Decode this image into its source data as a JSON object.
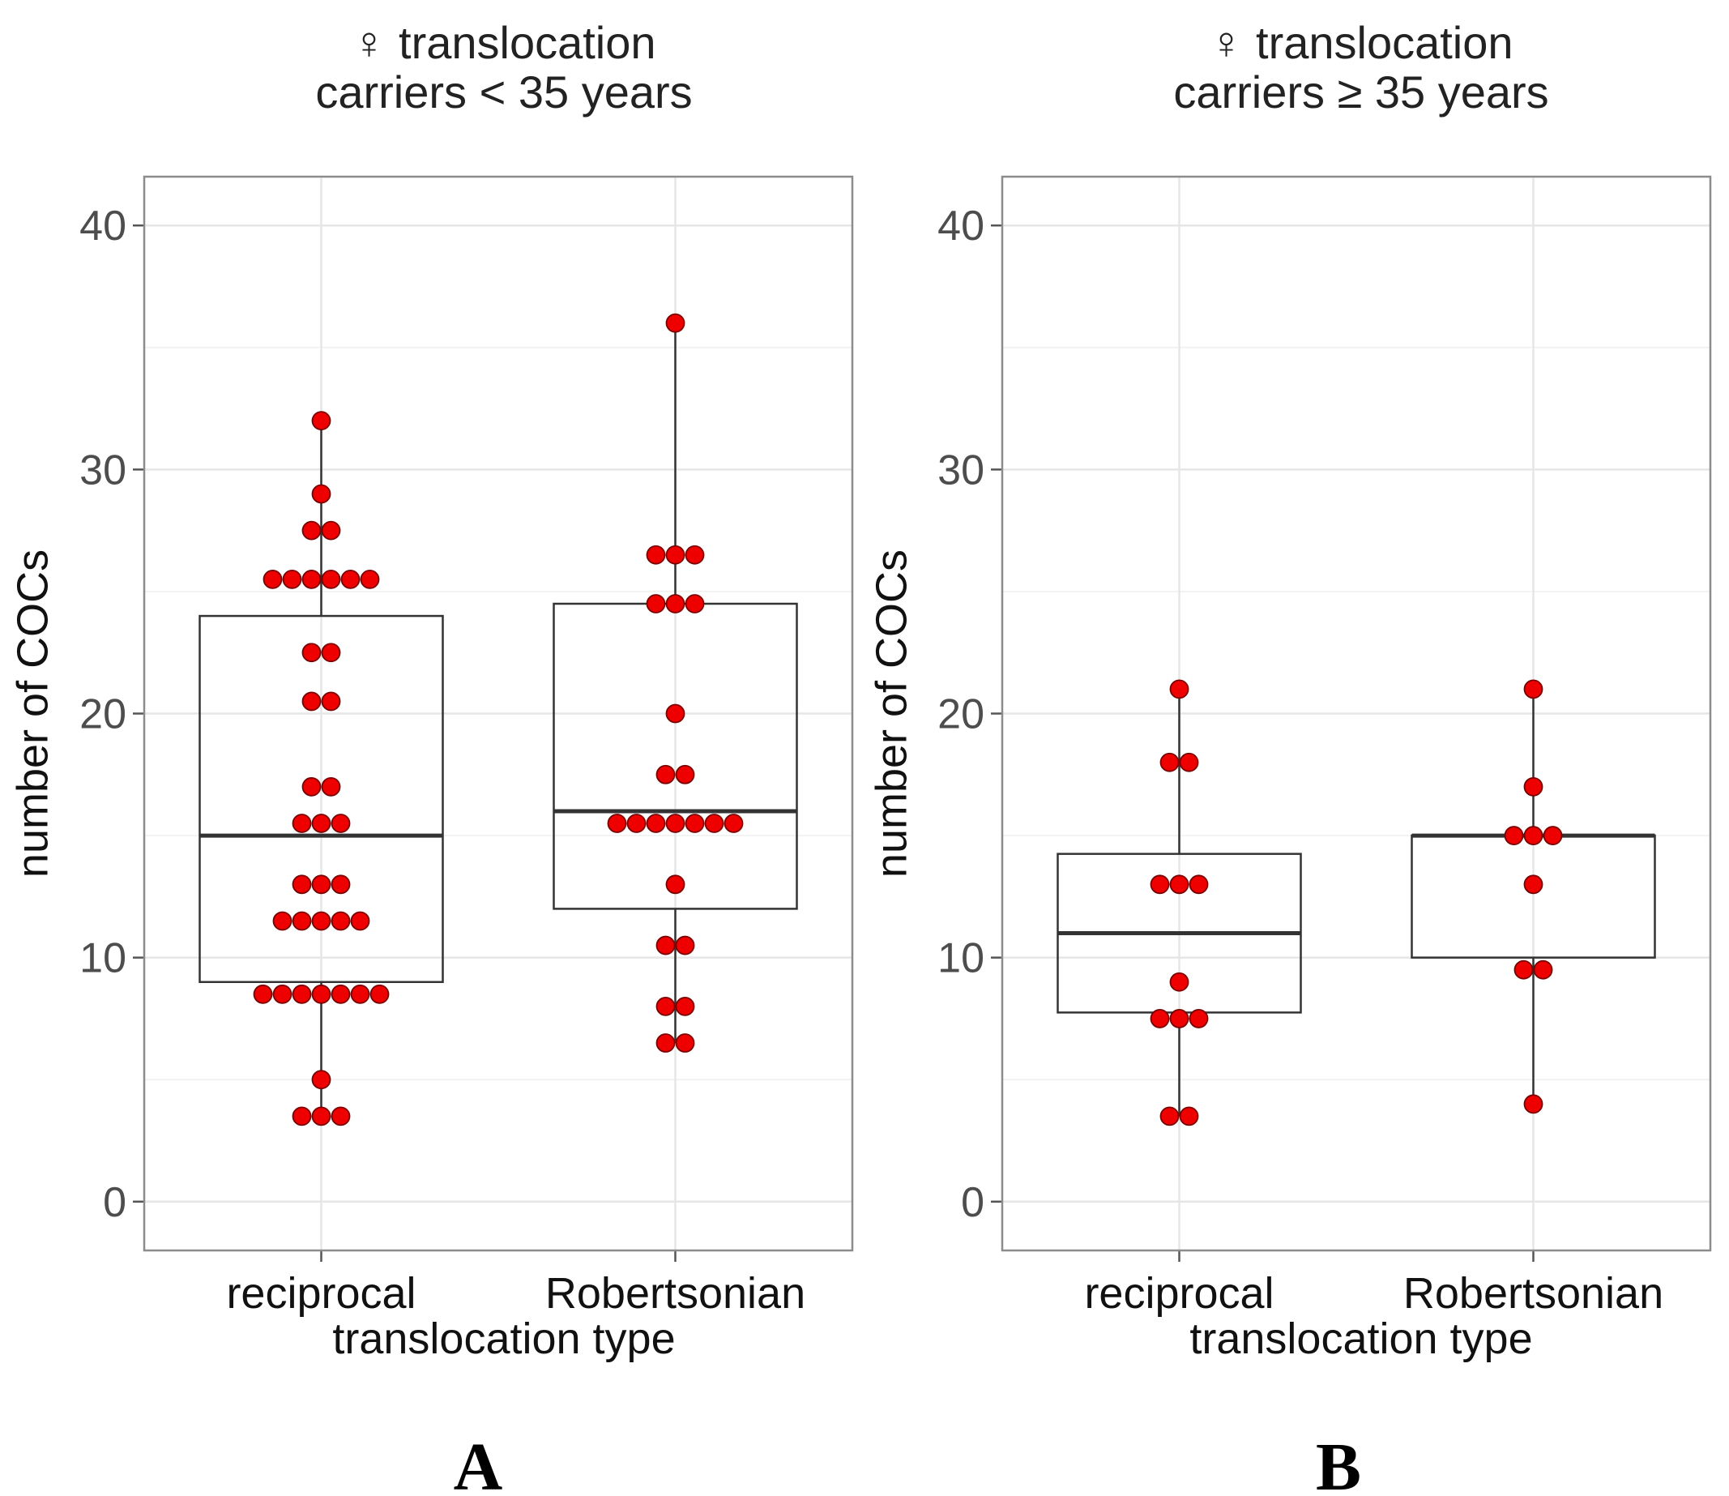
{
  "figure": {
    "panel_labels": [
      "A",
      "B"
    ],
    "colors": {
      "point_fill": "#ee0000",
      "point_stroke": "#7a0000",
      "box_stroke": "#333333",
      "grid_major": "#e6e6e6",
      "grid_minor": "#f2f2f2",
      "panel_border": "#8c8c8c"
    }
  },
  "chart_data": [
    {
      "type": "boxplot",
      "panel": "A",
      "title": [
        "♀ translocation",
        "carriers < 35 years"
      ],
      "xlabel": "translocation type",
      "ylabel": "number of COCs",
      "ylim": [
        -2,
        42
      ],
      "yticks": [
        0,
        10,
        20,
        30,
        40
      ],
      "ytick_labels": [
        "0",
        "10",
        "20",
        "30",
        "40"
      ],
      "categories": [
        "reciprocal",
        "Robertsonian"
      ],
      "boxes": [
        {
          "min": 3.5,
          "q1": 9,
          "median": 15,
          "q3": 24,
          "max": 32
        },
        {
          "min": 6.5,
          "q1": 12,
          "median": 16,
          "q3": 24.5,
          "max": 36
        }
      ],
      "points": [
        [
          32,
          29,
          27.5,
          27.5,
          25.5,
          25.5,
          25.5,
          25.5,
          25.5,
          25.5,
          22.5,
          22.5,
          20.5,
          20.5,
          17,
          17,
          15.5,
          15.5,
          15.5,
          13,
          13,
          13,
          11.5,
          11.5,
          11.5,
          11.5,
          11.5,
          8.5,
          8.5,
          8.5,
          8.5,
          8.5,
          8.5,
          8.5,
          5,
          3.5,
          3.5,
          3.5
        ],
        [
          36,
          26.5,
          26.5,
          26.5,
          24.5,
          24.5,
          24.5,
          20,
          17.5,
          17.5,
          15.5,
          15.5,
          15.5,
          15.5,
          15.5,
          15.5,
          15.5,
          13,
          10.5,
          10.5,
          8,
          8,
          6.5,
          6.5
        ]
      ]
    },
    {
      "type": "boxplot",
      "panel": "B",
      "title": [
        "♀ translocation",
        "carriers ≥ 35 years"
      ],
      "xlabel": "translocation type",
      "ylabel": "number of COCs",
      "ylim": [
        -2,
        42
      ],
      "yticks": [
        0,
        10,
        20,
        30,
        40
      ],
      "ytick_labels": [
        "0",
        "10",
        "20",
        "30",
        "40"
      ],
      "categories": [
        "reciprocal",
        "Robertsonian"
      ],
      "boxes": [
        {
          "min": 3.5,
          "q1": 7.75,
          "median": 11,
          "q3": 14.25,
          "max": 21
        },
        {
          "min": 4,
          "q1": 10,
          "median": 15,
          "q3": 15,
          "max": 21
        }
      ],
      "points": [
        [
          21,
          18,
          18,
          13,
          13,
          13,
          9,
          7.5,
          7.5,
          7.5,
          3.5,
          3.5
        ],
        [
          21,
          17,
          15,
          15,
          15,
          13,
          9.5,
          9.5,
          4
        ]
      ]
    }
  ]
}
